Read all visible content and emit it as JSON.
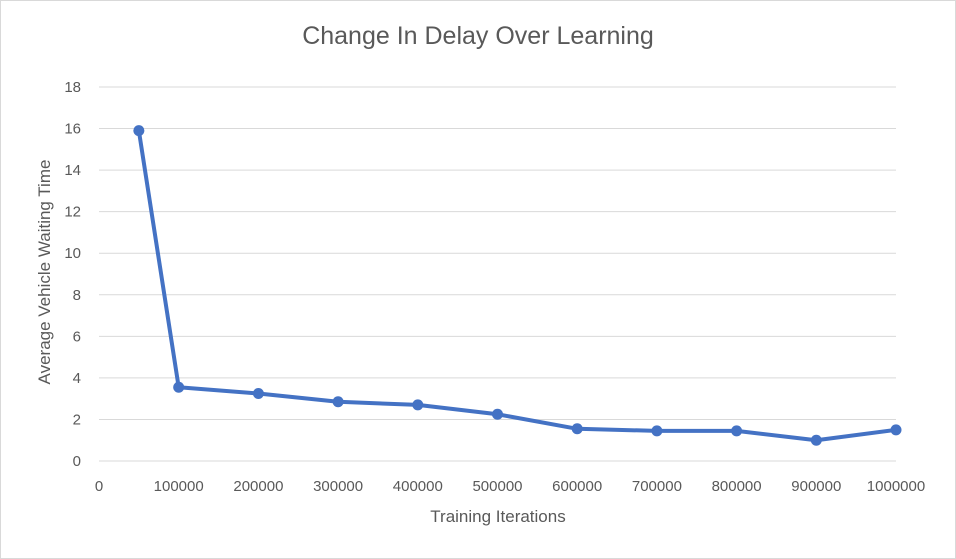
{
  "colors": {
    "series": "#4472c4",
    "gridline": "#d9d9d9",
    "text": "#595959",
    "background": "#ffffff"
  },
  "chart_data": {
    "type": "line",
    "title": "Change In Delay Over Learning",
    "xlabel": "Training Iterations",
    "ylabel": "Average Vehicle Waiting Time",
    "xlim": [
      0,
      1000000
    ],
    "ylim": [
      0,
      18
    ],
    "x_ticks": [
      0,
      100000,
      200000,
      300000,
      400000,
      500000,
      600000,
      700000,
      800000,
      900000,
      1000000
    ],
    "y_ticks": [
      0,
      2,
      4,
      6,
      8,
      10,
      12,
      14,
      16,
      18
    ],
    "grid": true,
    "legend": "none",
    "series": [
      {
        "x": [
          50000,
          100000,
          200000,
          300000,
          400000,
          500000,
          600000,
          700000,
          800000,
          900000,
          1000000
        ],
        "y": [
          15.9,
          3.55,
          3.25,
          2.85,
          2.7,
          2.25,
          1.55,
          1.45,
          1.45,
          1.0,
          1.5
        ]
      }
    ]
  }
}
